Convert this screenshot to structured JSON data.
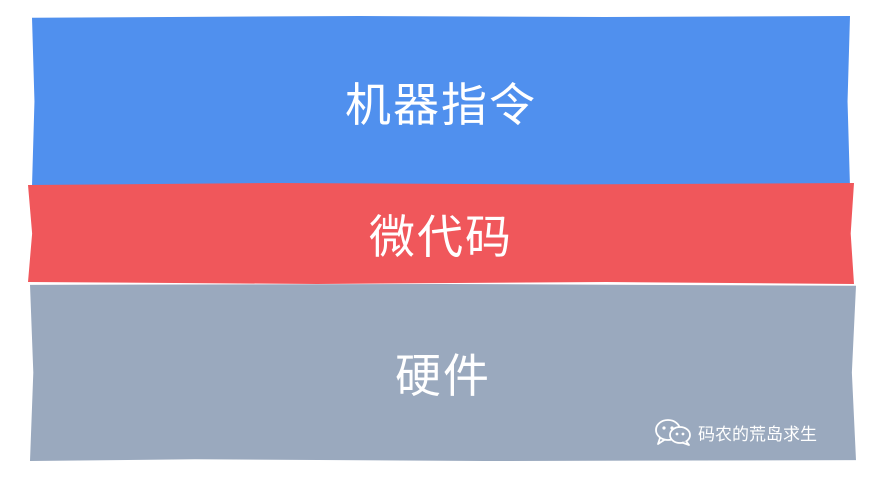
{
  "diagram": {
    "layers": [
      {
        "label": "机器指令",
        "color": "#5090ee"
      },
      {
        "label": "微代码",
        "color": "#f0575b"
      },
      {
        "label": "硬件",
        "color": "#9aa9be"
      }
    ]
  },
  "watermark": {
    "icon": "wechat-icon",
    "text": "码农的荒岛求生"
  }
}
